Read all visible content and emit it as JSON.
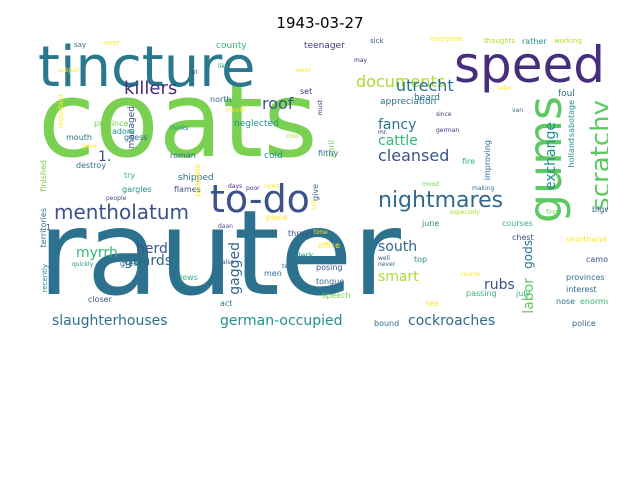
{
  "title": "1943-03-27",
  "palette": [
    "#440154",
    "#472d7b",
    "#3b528b",
    "#2c728e",
    "#21918c",
    "#28ae80",
    "#5ec962",
    "#addc30",
    "#fde725"
  ],
  "words": [
    {
      "text": "coats",
      "color": "#7ad151"
    },
    {
      "text": "rauter",
      "color": "#2c728e"
    },
    {
      "text": "tincture",
      "color": "#2a788e"
    },
    {
      "text": "speed",
      "color": "#472d7b"
    },
    {
      "text": "gums",
      "color": "#5ec962"
    },
    {
      "text": "to-do",
      "color": "#3b528b"
    },
    {
      "text": "nightmares",
      "color": "#31688e"
    },
    {
      "text": "mentholatum",
      "color": "#3b528b"
    },
    {
      "text": "scratchy",
      "color": "#5ec962"
    },
    {
      "text": "documents",
      "color": "#addc30"
    },
    {
      "text": "killers",
      "color": "#472d7b"
    },
    {
      "text": "roof",
      "color": "#3b528b"
    },
    {
      "text": "utrecht",
      "color": "#2c728e"
    },
    {
      "text": "fancy",
      "color": "#2c728e"
    },
    {
      "text": "cleansed",
      "color": "#3b528b"
    },
    {
      "text": "cattle",
      "color": "#35b779"
    },
    {
      "text": "exchange",
      "color": "#21918c"
    },
    {
      "text": "1.",
      "color": "#3b528b"
    },
    {
      "text": "guards",
      "color": "#31688e"
    },
    {
      "text": "slaughterhouses",
      "color": "#2c728e"
    },
    {
      "text": "german-occupied",
      "color": "#21918c"
    },
    {
      "text": "cockroaches",
      "color": "#31688e"
    },
    {
      "text": "labor",
      "color": "#5ec962"
    },
    {
      "text": "myrrh",
      "color": "#35b779"
    },
    {
      "text": "herd",
      "color": "#3b528b"
    },
    {
      "text": "gagged",
      "color": "#31688e"
    },
    {
      "text": "south",
      "color": "#31688e"
    },
    {
      "text": "smart",
      "color": "#addc30"
    },
    {
      "text": "gods",
      "color": "#2c728e"
    },
    {
      "text": "rubs",
      "color": "#3b528b"
    },
    {
      "text": "county",
      "color": "#35b779"
    },
    {
      "text": "teenager",
      "color": "#443983"
    },
    {
      "text": "sick",
      "color": "#3b528b"
    },
    {
      "text": "everyone",
      "color": "#fde725"
    },
    {
      "text": "thoughts",
      "color": "#addc30"
    },
    {
      "text": "rather",
      "color": "#21918c"
    },
    {
      "text": "working",
      "color": "#addc30"
    },
    {
      "text": "say",
      "color": "#31688e"
    },
    {
      "text": "ever",
      "color": "#fde725"
    },
    {
      "text": "managed",
      "color": "#3b528b"
    },
    {
      "text": "province",
      "color": "#7ad151"
    },
    {
      "text": "guess",
      "color": "#31688e"
    },
    {
      "text": "adore",
      "color": "#21918c"
    },
    {
      "text": "mouth",
      "color": "#2c728e"
    },
    {
      "text": "north",
      "color": "#2c728e"
    },
    {
      "text": "appreciation",
      "color": "#2c728e"
    },
    {
      "text": "heard",
      "color": "#2c728e"
    },
    {
      "text": "neglected",
      "color": "#21918c"
    },
    {
      "text": "set",
      "color": "#472d7b"
    },
    {
      "text": "april",
      "color": "#7ad151"
    },
    {
      "text": "foul",
      "color": "#2c728e"
    },
    {
      "text": "sabotage",
      "color": "#21918c"
    },
    {
      "text": "holland",
      "color": "#21918c"
    },
    {
      "text": "shipped",
      "color": "#2c728e"
    },
    {
      "text": "roman",
      "color": "#2c728e"
    },
    {
      "text": "cold",
      "color": "#21918c"
    },
    {
      "text": "filthy",
      "color": "#2c728e"
    },
    {
      "text": "fire",
      "color": "#35b779"
    },
    {
      "text": "improving",
      "color": "#31688e"
    },
    {
      "text": "destroy",
      "color": "#2c728e"
    },
    {
      "text": "gargles",
      "color": "#21918c"
    },
    {
      "text": "flames",
      "color": "#3b528b"
    },
    {
      "text": "try",
      "color": "#35b779"
    },
    {
      "text": "making",
      "color": "#2c728e"
    },
    {
      "text": "mood",
      "color": "#7ad151"
    },
    {
      "text": "finished",
      "color": "#7ad151"
    },
    {
      "text": "important",
      "color": "#fde725"
    },
    {
      "text": "territories",
      "color": "#2c728e"
    },
    {
      "text": "recently",
      "color": "#21918c"
    },
    {
      "text": "greek",
      "color": "#2c728e"
    },
    {
      "text": "quickly",
      "color": "#21918c"
    },
    {
      "text": "jews",
      "color": "#35b779"
    },
    {
      "text": "closer",
      "color": "#3b528b"
    },
    {
      "text": "piece",
      "color": "#fde725"
    },
    {
      "text": "throat",
      "color": "#3b528b"
    },
    {
      "text": "office",
      "color": "#fde725"
    },
    {
      "text": "courses",
      "color": "#35b779"
    },
    {
      "text": "chest",
      "color": "#3b528b"
    },
    {
      "text": "shorthand",
      "color": "#fde725"
    },
    {
      "text": "camomile",
      "color": "#3b528b"
    },
    {
      "text": "provinces",
      "color": "#2c728e"
    },
    {
      "text": "interest",
      "color": "#31688e"
    },
    {
      "text": "nose",
      "color": "#2c728e"
    },
    {
      "text": "enormous",
      "color": "#35b779"
    },
    {
      "text": "july",
      "color": "#35b779"
    },
    {
      "text": "police",
      "color": "#31688e"
    },
    {
      "text": "passing",
      "color": "#35b779"
    },
    {
      "text": "speech",
      "color": "#7ad151"
    },
    {
      "text": "tea",
      "color": "#fde725"
    },
    {
      "text": "bound",
      "color": "#2c728e"
    },
    {
      "text": "act",
      "color": "#2c728e"
    },
    {
      "text": "men",
      "color": "#2c728e"
    },
    {
      "text": "clerk",
      "color": "#21918c"
    },
    {
      "text": "posing",
      "color": "#3b528b"
    },
    {
      "text": "tongue",
      "color": "#31688e"
    },
    {
      "text": "top",
      "color": "#21918c"
    },
    {
      "text": "june",
      "color": "#21918c"
    },
    {
      "text": "bigwig",
      "color": "#31688e"
    },
    {
      "text": "first",
      "color": "#7ad151"
    },
    {
      "text": "especially",
      "color": "#addc30"
    },
    {
      "text": "possible",
      "color": "#fde725"
    },
    {
      "text": "give",
      "color": "#31688e"
    },
    {
      "text": "call",
      "color": "#fde725"
    },
    {
      "text": "days",
      "color": "#472d7b"
    },
    {
      "text": "poor",
      "color": "#472d7b"
    },
    {
      "text": "news",
      "color": "#fde725"
    },
    {
      "text": "thinks",
      "color": "#21918c"
    },
    {
      "text": "german",
      "color": "#472d7b"
    },
    {
      "text": "since",
      "color": "#472d7b"
    },
    {
      "text": "mr.",
      "color": "#472d7b"
    },
    {
      "text": "van",
      "color": "#2c728e"
    },
    {
      "text": "later",
      "color": "#fde725"
    },
    {
      "text": "let",
      "color": "#3b528b"
    },
    {
      "text": "like",
      "color": "#21918c"
    },
    {
      "text": "subject",
      "color": "#fde725"
    },
    {
      "text": "went",
      "color": "#fde725"
    },
    {
      "text": "may",
      "color": "#472d7b"
    },
    {
      "text": "must",
      "color": "#472d7b"
    },
    {
      "text": "mouth",
      "color": "#fde725"
    },
    {
      "text": "gave",
      "color": "#fde725"
    },
    {
      "text": "cold",
      "color": "#addc30"
    },
    {
      "text": "also",
      "color": "#3b528b"
    },
    {
      "text": "daan",
      "color": "#3b528b"
    },
    {
      "text": "tell",
      "color": "#31688e"
    },
    {
      "text": "time",
      "color": "#fde725"
    },
    {
      "text": "well",
      "color": "#3b528b"
    },
    {
      "text": "never",
      "color": "#31688e"
    },
    {
      "text": "course",
      "color": "#fde725"
    },
    {
      "text": "mythology",
      "color": "#2c728e"
    },
    {
      "text": "people",
      "color": "#3b528b"
    },
    {
      "text": "1",
      "color": "#3b528b"
    }
  ]
}
